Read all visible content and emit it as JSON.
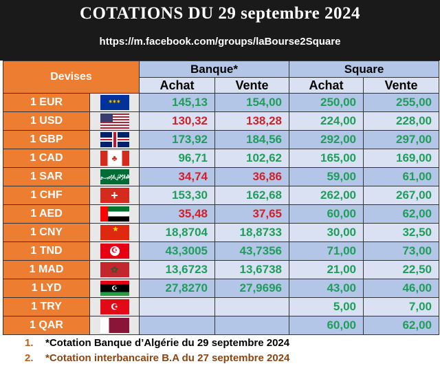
{
  "title": "COTATIONS DU 29 septembre 2024",
  "url": "https://m.facebook.com/groups/laBourse2Square",
  "headers": {
    "devises": "Devises",
    "banque": "Banque*",
    "square": "Square",
    "achat": "Achat",
    "vente": "Vente"
  },
  "colors": {
    "header_orange": "#ed7d31",
    "row_dark": "#b4c6e7",
    "row_light": "#d9e1f2",
    "green": "#1e9e5a",
    "red": "#d0202a"
  },
  "rows": [
    {
      "currency": "1 EUR",
      "flag": "eu-flag-icon",
      "bank_buy": "145,13",
      "bank_sell": "154,00",
      "square_buy": "250,00",
      "square_sell": "255,00",
      "bank_color": "green"
    },
    {
      "currency": "1 USD",
      "flag": "us-flag-icon",
      "bank_buy": "130,32",
      "bank_sell": "138,28",
      "square_buy": "224,00",
      "square_sell": "228,00",
      "bank_color": "red"
    },
    {
      "currency": "1 GBP",
      "flag": "uk-flag-icon",
      "bank_buy": "173,92",
      "bank_sell": "184,56",
      "square_buy": "292,00",
      "square_sell": "297,00",
      "bank_color": "green"
    },
    {
      "currency": "1 CAD",
      "flag": "canada-flag-icon",
      "bank_buy": "96,71",
      "bank_sell": "102,62",
      "square_buy": "165,00",
      "square_sell": "169,00",
      "bank_color": "green"
    },
    {
      "currency": "1 SAR",
      "flag": "saudi-flag-icon",
      "bank_buy": "34,74",
      "bank_sell": "36,86",
      "square_buy": "59,00",
      "square_sell": "61,00",
      "bank_color": "red"
    },
    {
      "currency": "1 CHF",
      "flag": "swiss-flag-icon",
      "bank_buy": "153,30",
      "bank_sell": "162,68",
      "square_buy": "262,00",
      "square_sell": "267,00",
      "bank_color": "green"
    },
    {
      "currency": "1 AED",
      "flag": "uae-flag-icon",
      "bank_buy": "35,48",
      "bank_sell": "37,65",
      "square_buy": "60,00",
      "square_sell": "62,00",
      "bank_color": "red"
    },
    {
      "currency": "1 CNY",
      "flag": "china-flag-icon",
      "bank_buy": "18,8704",
      "bank_sell": "18,8733",
      "square_buy": "30,00",
      "square_sell": "32,50",
      "bank_color": "green"
    },
    {
      "currency": "1 TND",
      "flag": "tunisia-flag-icon",
      "bank_buy": "43,3005",
      "bank_sell": "43,7356",
      "square_buy": "71,00",
      "square_sell": "73,00",
      "bank_color": "green"
    },
    {
      "currency": "1 MAD",
      "flag": "morocco-flag-icon",
      "bank_buy": "13,6723",
      "bank_sell": "13,6738",
      "square_buy": "21,00",
      "square_sell": "22,50",
      "bank_color": "green"
    },
    {
      "currency": "1 LYD",
      "flag": "libya-flag-icon",
      "bank_buy": "27,8270",
      "bank_sell": "27,9696",
      "square_buy": "43,00",
      "square_sell": "46,00",
      "bank_color": "green"
    },
    {
      "currency": "1 TRY",
      "flag": "turkey-flag-icon",
      "bank_buy": "",
      "bank_sell": "",
      "square_buy": "5,00",
      "square_sell": "7,00",
      "bank_color": "green"
    },
    {
      "currency": "1 QAR",
      "flag": "qatar-flag-icon",
      "bank_buy": "",
      "bank_sell": "",
      "square_buy": "60,00",
      "square_sell": "62,00",
      "bank_color": "green"
    }
  ],
  "notes": [
    {
      "marker": "1.",
      "text": "*Cotation Banque d’Algérie du 29 septembre 2024"
    },
    {
      "marker": "2.",
      "text": "*Cotation interbancaire B.A du 27 septembre 2024"
    }
  ]
}
